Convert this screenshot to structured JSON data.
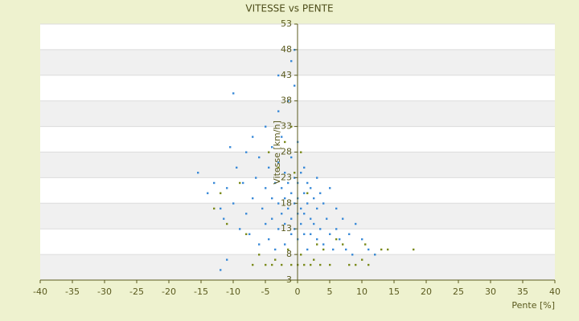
{
  "chart_data": {
    "type": "scatter",
    "title": "VITESSE vs PENTE",
    "x_label": "Pente [%]",
    "y_label": "Vitesse [km/h]",
    "xlim": [
      -40,
      40
    ],
    "xticks": [
      -40,
      -35,
      -30,
      -25,
      -20,
      -15,
      -10,
      -5,
      0,
      5,
      10,
      15,
      20,
      25,
      30,
      35,
      40
    ],
    "ylim": [
      3,
      53
    ],
    "yticks": [
      3,
      8,
      13,
      18,
      23,
      28,
      33,
      38,
      43,
      48,
      53
    ],
    "grid": true,
    "series": [
      {
        "color": "#7a8a1a",
        "x": [
          -13,
          -12,
          -11,
          -9,
          -8,
          -7,
          -6,
          -5,
          -4.5,
          -4,
          -3.5,
          -3,
          -2.5,
          -2,
          -1.5,
          -1,
          -0.5,
          0,
          0.5,
          1,
          1.5,
          2,
          2.5,
          3,
          3.5,
          4,
          5,
          6,
          7,
          8,
          9,
          10,
          10.5,
          11,
          12,
          13,
          14,
          18,
          -1,
          0.5
        ],
        "y": [
          17,
          20,
          14,
          22,
          12,
          6,
          8,
          6,
          28,
          6,
          7,
          25,
          6,
          30,
          9,
          6,
          24,
          6,
          8,
          6,
          20,
          6,
          7,
          10,
          6,
          9,
          6,
          11,
          10,
          6,
          6,
          7,
          10,
          6,
          8,
          9,
          9,
          9,
          33,
          28
        ]
      },
      {
        "color": "#3a8ad8",
        "x": [
          -15.5,
          -14,
          -13,
          -12,
          -11.5,
          -11,
          -10.5,
          -10,
          -10,
          -9.5,
          -9,
          -8.5,
          -8,
          -8,
          -7.5,
          -7,
          -7,
          -6.5,
          -6,
          -6,
          -5.5,
          -5,
          -5,
          -5,
          -4.5,
          -4.5,
          -4,
          -4,
          -4,
          -3.5,
          -3.5,
          -3,
          -3,
          -3,
          -3,
          -2.5,
          -2.5,
          -2.5,
          -2,
          -2,
          -2,
          -2,
          -1.5,
          -1.5,
          -1.5,
          -1,
          -1,
          -1,
          -1,
          -0.5,
          -0.5,
          -0.5,
          -0.5,
          0,
          0,
          0,
          0,
          0,
          0.5,
          0.5,
          0.5,
          1,
          1,
          1,
          1,
          1.5,
          1.5,
          1.5,
          2,
          2,
          2,
          2.5,
          2.5,
          3,
          3,
          3,
          3.5,
          3.5,
          4,
          4,
          4.5,
          5,
          5,
          5.5,
          6,
          6,
          6.5,
          7,
          7.5,
          8,
          8.5,
          9,
          10,
          11,
          12,
          -12,
          -11,
          -1,
          -0.5,
          -3
        ],
        "y": [
          24,
          20,
          22,
          17,
          15,
          21,
          29,
          39.5,
          18,
          25,
          13,
          22,
          28,
          16,
          12,
          31,
          19,
          23,
          10,
          27,
          17,
          33,
          21,
          14,
          25,
          11,
          29,
          19,
          15,
          22,
          9,
          36,
          26,
          18,
          13,
          31,
          21,
          16,
          24,
          19,
          14,
          10,
          38,
          22,
          17,
          27,
          20,
          15,
          12,
          41,
          23,
          18,
          13,
          30,
          22,
          19,
          16,
          11,
          24,
          17,
          14,
          25,
          20,
          16,
          12,
          22,
          18,
          9,
          21,
          15,
          12,
          19,
          14,
          23,
          17,
          11,
          20,
          13,
          18,
          10,
          15,
          21,
          12,
          9,
          17,
          13,
          11,
          15,
          9,
          12,
          8,
          14,
          11,
          9,
          8,
          5,
          7,
          45.8,
          48,
          43
        ]
      }
    ]
  }
}
